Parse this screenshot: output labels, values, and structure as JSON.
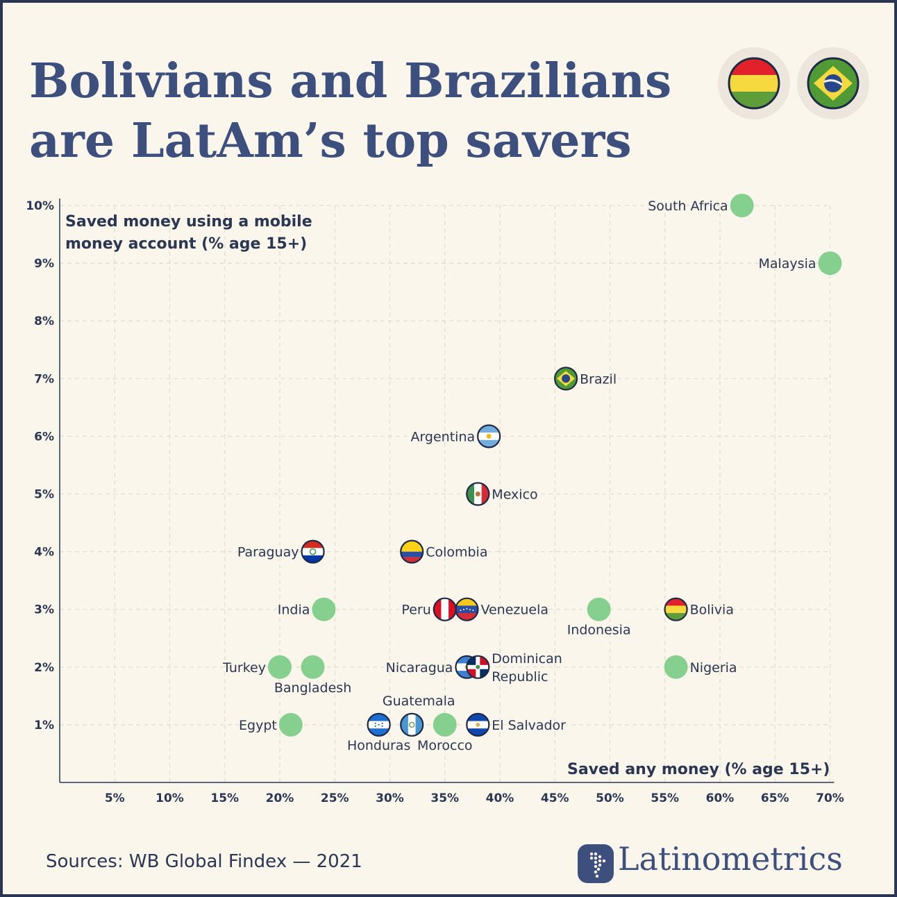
{
  "title": "Bolivians and Brazilians are LatAm’s top savers",
  "sources": "Sources: WB Global Findex — 2021",
  "brand": "Latinometrics",
  "header_flags": [
    "bolivia-flag",
    "brazil-flag"
  ],
  "colors": {
    "background": "#fbf6ec",
    "title": "#3c4f7d",
    "text": "#2a3652",
    "marker_green": "#86d08f",
    "grid": "#e3dccc"
  },
  "chart_data": {
    "type": "scatter",
    "xlabel": "Saved any money (% age 15+)",
    "ylabel": "Saved money using a mobile money account (% age 15+)",
    "xlim": [
      0,
      70
    ],
    "ylim": [
      0,
      10
    ],
    "x_ticks": [
      "5%",
      "10%",
      "15%",
      "20%",
      "25%",
      "30%",
      "35%",
      "40%",
      "45%",
      "50%",
      "55%",
      "60%",
      "65%",
      "70%"
    ],
    "y_ticks": [
      "1%",
      "2%",
      "3%",
      "4%",
      "5%",
      "6%",
      "7%",
      "8%",
      "9%",
      "10%"
    ],
    "grid": true,
    "points": [
      {
        "label": "South Africa",
        "x": 62,
        "y": 10,
        "marker": "green",
        "label_pos": "left"
      },
      {
        "label": "Malaysia",
        "x": 70,
        "y": 9,
        "marker": "green",
        "label_pos": "left"
      },
      {
        "label": "Brazil",
        "x": 46,
        "y": 7,
        "marker": "flag-brazil",
        "label_pos": "right"
      },
      {
        "label": "Argentina",
        "x": 39,
        "y": 6,
        "marker": "flag-argentina",
        "label_pos": "left"
      },
      {
        "label": "Mexico",
        "x": 38,
        "y": 5,
        "marker": "flag-mexico",
        "label_pos": "right"
      },
      {
        "label": "Paraguay",
        "x": 23,
        "y": 4,
        "marker": "flag-paraguay",
        "label_pos": "left"
      },
      {
        "label": "Colombia",
        "x": 32,
        "y": 4,
        "marker": "flag-colombia",
        "label_pos": "right"
      },
      {
        "label": "India",
        "x": 24,
        "y": 3,
        "marker": "green",
        "label_pos": "left"
      },
      {
        "label": "Peru",
        "x": 35,
        "y": 3,
        "marker": "flag-peru",
        "label_pos": "left"
      },
      {
        "label": "Venezuela",
        "x": 37,
        "y": 3,
        "marker": "flag-venezuela",
        "label_pos": "right"
      },
      {
        "label": "Indonesia",
        "x": 49,
        "y": 3,
        "marker": "green",
        "label_pos": "below"
      },
      {
        "label": "Bolivia",
        "x": 56,
        "y": 3,
        "marker": "flag-bolivia",
        "label_pos": "right"
      },
      {
        "label": "Turkey",
        "x": 20,
        "y": 2,
        "marker": "green",
        "label_pos": "left"
      },
      {
        "label": "Bangladesh",
        "x": 23,
        "y": 2,
        "marker": "green",
        "label_pos": "below"
      },
      {
        "label": "Nicaragua",
        "x": 37,
        "y": 2,
        "marker": "flag-nicaragua",
        "label_pos": "left"
      },
      {
        "label": "Dominican Republic",
        "x": 38,
        "y": 2,
        "marker": "flag-dominican-republic",
        "label_pos": "right-2line"
      },
      {
        "label": "Nigeria",
        "x": 56,
        "y": 2,
        "marker": "green",
        "label_pos": "right"
      },
      {
        "label": "Egypt",
        "x": 21,
        "y": 1,
        "marker": "green",
        "label_pos": "left"
      },
      {
        "label": "Honduras",
        "x": 29,
        "y": 1,
        "marker": "flag-honduras",
        "label_pos": "below"
      },
      {
        "label": "Guatemala",
        "x": 32,
        "y": 1,
        "marker": "flag-guatemala",
        "label_pos": "above"
      },
      {
        "label": "Morocco",
        "x": 35,
        "y": 1,
        "marker": "green",
        "label_pos": "below"
      },
      {
        "label": "El Salvador",
        "x": 38,
        "y": 1,
        "marker": "flag-el-salvador",
        "label_pos": "right"
      }
    ]
  }
}
